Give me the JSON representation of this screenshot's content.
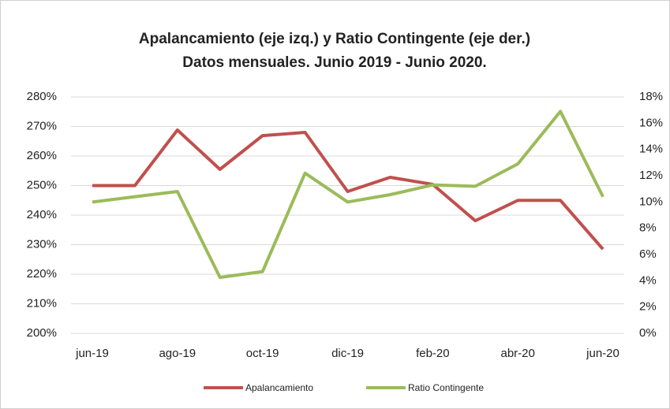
{
  "chart_data": {
    "type": "line",
    "title": "Apalancamiento (eje izq.) y Ratio Contingente (eje der.)",
    "subtitle": "Datos mensuales. Junio 2019 - Junio 2020.",
    "categories": [
      "jun-19",
      null,
      "ago-19",
      null,
      "oct-19",
      null,
      "dic-19",
      null,
      "feb-20",
      null,
      "abr-20",
      null,
      "jun-20"
    ],
    "series": [
      {
        "name": "Apalancamiento",
        "color": "#c0504d",
        "values": [
          250,
          250,
          268.8,
          255.5,
          266.9,
          268,
          248,
          252.8,
          250.4,
          238.1,
          245,
          245,
          228.5
        ]
      },
      {
        "name": "Ratio Contingente",
        "color": "#9bbb59",
        "axis": "y2",
        "values": [
          10.0,
          10.4,
          10.8,
          4.26,
          4.7,
          12.2,
          10.0,
          10.56,
          11.3,
          11.2,
          12.9,
          16.9,
          10.4
        ]
      }
    ],
    "ylim": [
      200,
      280
    ],
    "yticks": [
      {
        "value": 200,
        "label": "200%"
      },
      {
        "value": 210,
        "label": "210%"
      },
      {
        "value": 220,
        "label": "220%"
      },
      {
        "value": 230,
        "label": "230%"
      },
      {
        "value": 240,
        "label": "240%"
      },
      {
        "value": 250,
        "label": "250%"
      },
      {
        "value": 260,
        "label": "260%"
      },
      {
        "value": 270,
        "label": "270%"
      },
      {
        "value": 280,
        "label": "280%"
      }
    ],
    "y2lim": [
      0,
      18
    ],
    "y2ticks": [
      {
        "value": 0,
        "label": "0%"
      },
      {
        "value": 2,
        "label": "2%"
      },
      {
        "value": 4,
        "label": "4%"
      },
      {
        "value": 6,
        "label": "6%"
      },
      {
        "value": 8,
        "label": "8%"
      },
      {
        "value": 10,
        "label": "10%"
      },
      {
        "value": 12,
        "label": "12%"
      },
      {
        "value": 14,
        "label": "14%"
      },
      {
        "value": 16,
        "label": "16%"
      },
      {
        "value": 18,
        "label": "18%"
      }
    ],
    "grid": true,
    "legend": "bottom"
  }
}
